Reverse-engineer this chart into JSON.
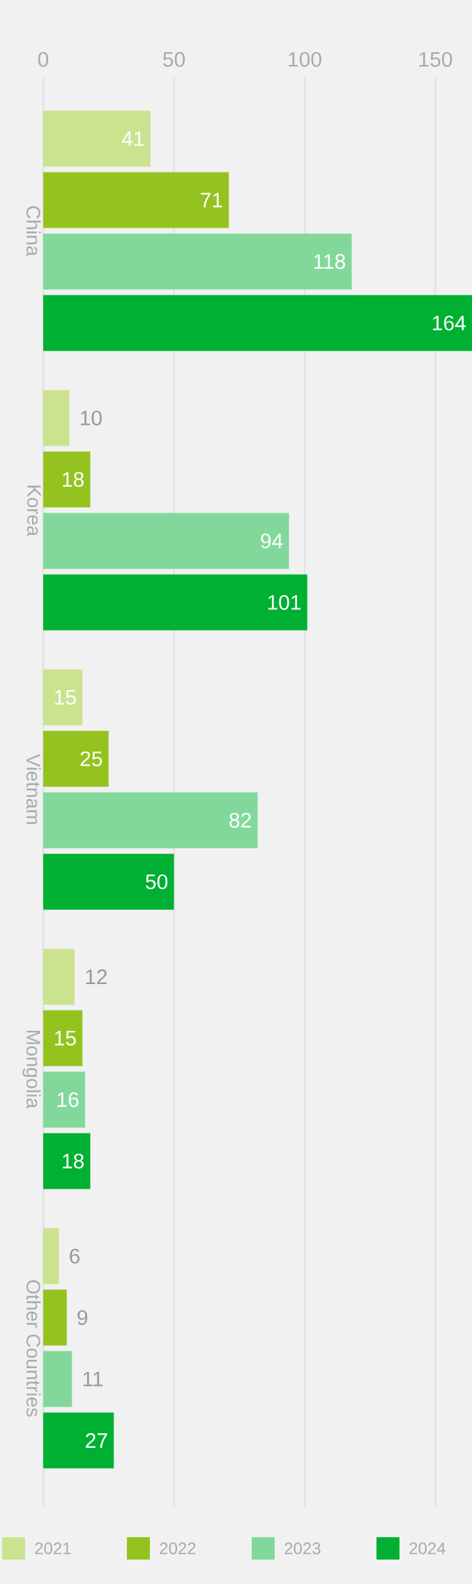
{
  "chart_data": {
    "type": "bar",
    "orientation": "horizontal",
    "categories": [
      "China",
      "Korea",
      "Vietnam",
      "Mongolia",
      "Other Countries"
    ],
    "series": [
      {
        "name": "2021",
        "color": "#cbe38f",
        "values": [
          41,
          10,
          15,
          12,
          6
        ]
      },
      {
        "name": "2022",
        "color": "#94c320",
        "values": [
          71,
          18,
          25,
          15,
          9
        ]
      },
      {
        "name": "2023",
        "color": "#82d89b",
        "values": [
          118,
          94,
          82,
          16,
          11
        ]
      },
      {
        "name": "2024",
        "color": "#00b033",
        "values": [
          164,
          101,
          50,
          18,
          27
        ]
      }
    ],
    "xlim": [
      0,
      164
    ],
    "xticks": [
      0,
      50,
      100,
      150
    ],
    "grid": "x",
    "legend": "bottom",
    "data_labels": true
  }
}
